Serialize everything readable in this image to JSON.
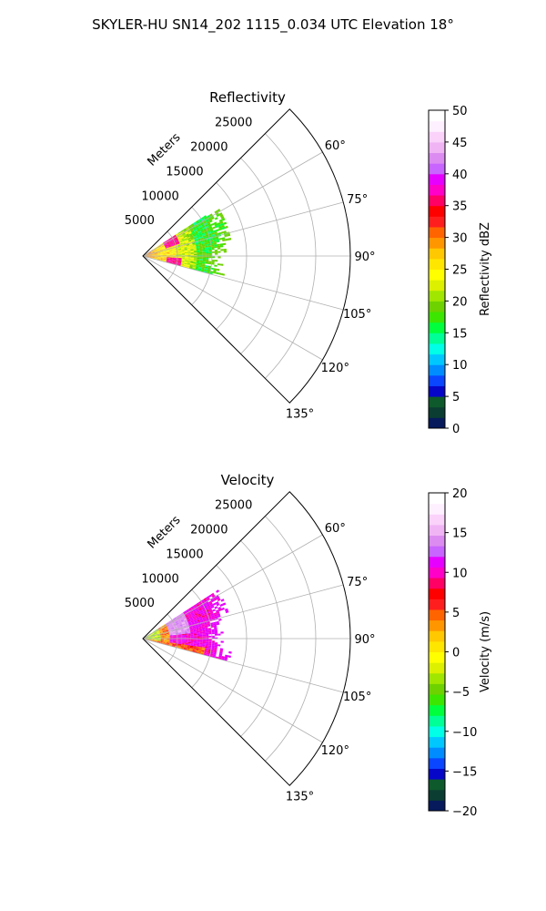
{
  "figure_title": "SKYLER-HU  SN14_202  1115_0.034 UTC Elevation 18°",
  "range_unit_label": "Meters",
  "chart_data": [
    {
      "type": "heatmap",
      "title": "Reflectivity",
      "projection": "polar-sector",
      "azimuth_range_deg": [
        45,
        135
      ],
      "azimuth_ticks": [
        "60°",
        "75°",
        "90°",
        "105°",
        "120°",
        "135°"
      ],
      "range_ticks": [
        "5000",
        "10000",
        "15000",
        "20000",
        "25000"
      ],
      "range_max_m": 30000,
      "grid": true,
      "colorbar": {
        "label": "Reflectivity dBZ",
        "min": 0,
        "max": 50,
        "ticks": [
          "0",
          "5",
          "10",
          "15",
          "20",
          "25",
          "30",
          "35",
          "40",
          "45",
          "50"
        ],
        "colors": [
          "#061a5c",
          "#0b3d32",
          "#0e5a2c",
          "#0606c8",
          "#0a46ff",
          "#008cff",
          "#00c8ff",
          "#00ffe6",
          "#00ff96",
          "#00ff3c",
          "#3ce600",
          "#6ed200",
          "#a0e600",
          "#dcf000",
          "#ffff00",
          "#ffe600",
          "#ffc800",
          "#ff9600",
          "#ff6400",
          "#ff1e1e",
          "#ff0000",
          "#ff0064",
          "#ff00c8",
          "#e600ff",
          "#c864ff",
          "#dc8cf0",
          "#f0b4f5",
          "#fad2fa",
          "#fff0ff",
          "#ffffff"
        ]
      },
      "data_description_fields": {
        "echo_range_m": [
          0,
          13000
        ],
        "near_range_dbz": [
          22,
          32
        ],
        "cores_dbz": [
          33,
          38
        ],
        "far_range_dbz": [
          12,
          20
        ]
      }
    },
    {
      "type": "heatmap",
      "title": "Velocity",
      "projection": "polar-sector",
      "azimuth_range_deg": [
        45,
        135
      ],
      "azimuth_ticks": [
        "60°",
        "75°",
        "90°",
        "105°",
        "120°",
        "135°"
      ],
      "range_ticks": [
        "5000",
        "10000",
        "15000",
        "20000",
        "25000"
      ],
      "range_max_m": 30000,
      "grid": true,
      "colorbar": {
        "label": "Velocity (m/s)",
        "min": -20,
        "max": 20,
        "ticks": [
          "−20",
          "−15",
          "−10",
          "−5",
          "0",
          "5",
          "10",
          "15",
          "20"
        ],
        "colors": [
          "#061a5c",
          "#0b3d32",
          "#0e5a2c",
          "#0606c8",
          "#0a46ff",
          "#008cff",
          "#00c8ff",
          "#00ffe6",
          "#00ff96",
          "#00ff3c",
          "#3ce600",
          "#6ed200",
          "#a0e600",
          "#dcf000",
          "#ffff00",
          "#ffe600",
          "#ffc800",
          "#ff9600",
          "#ff6400",
          "#ff1e1e",
          "#ff0000",
          "#ff0064",
          "#ff00c8",
          "#e600ff",
          "#c864ff",
          "#dc8cf0",
          "#f0b4f5",
          "#fad2fa",
          "#fff0ff",
          "#ffffff"
        ]
      },
      "data_description_fields": {
        "echo_range_m": [
          0,
          13000
        ],
        "near_range_ms": [
          -8,
          0
        ],
        "mid_range_ms": [
          10,
          14
        ],
        "far_range_ms": [
          6,
          10
        ]
      }
    }
  ]
}
